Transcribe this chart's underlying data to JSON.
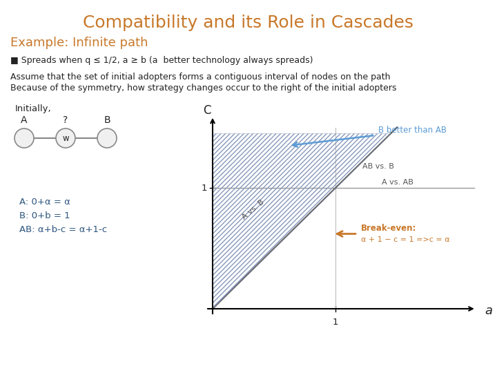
{
  "title": "Compatibility and its Role in Cascades",
  "title_color": "#C8782A",
  "title_fontsize": 18,
  "subtitle": "Example: Infinite path",
  "subtitle_color": "#C8782A",
  "subtitle_fontsize": 13,
  "bullet_text": "■ Spreads when q ≤ 1/2, a ≥ b (a  better technology always spreads)",
  "body_text1": "Assume that the set of initial adopters forms a contiguous interval of nodes on the path",
  "body_text2": "Because of the symmetry, how strategy changes occur to the right of the initial adopters",
  "initially_label": "Initially,",
  "payoff_A": "A: 0+α = α",
  "payoff_B": "B: 0+b = 1",
  "payoff_AB": "AB: α+b-c = α+1-c",
  "b_better_label": "B better than AB",
  "b_better_color": "#5B9BD5",
  "a_vs_b_label": "A vs. B",
  "ab_vs_b_label": "AB vs. B",
  "a_vs_ab_label": "A vs. AB",
  "breakeven_title": "Break-even:",
  "breakeven_formula": "α + 1 − c = 1 =>c = α",
  "breakeven_color": "#C8782A",
  "bg_color": "#FFFFFF",
  "text_color": "#222222",
  "graph_line_color": "#555555",
  "hatch_color": "#8899AA",
  "node_text_color": "#222222"
}
